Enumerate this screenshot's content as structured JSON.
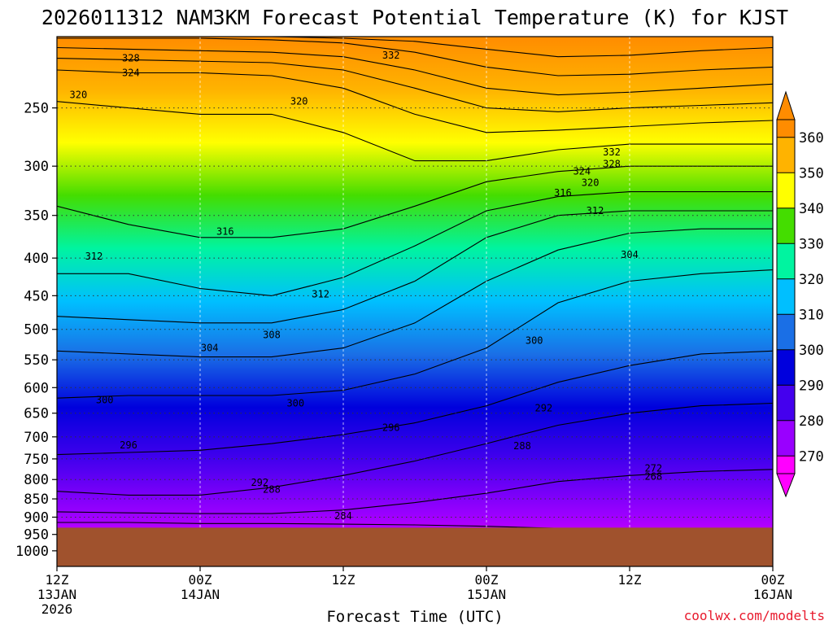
{
  "chart_data": {
    "type": "heatmap",
    "title": "2026011312 NAM3KM Forecast Potential Temperature (K) for KJST",
    "xlabel": "Forecast Time (UTC)",
    "ylabel": "",
    "x_ticks": [
      {
        "hours": 0,
        "line1": "12Z",
        "line2": "13JAN",
        "line3": "2026"
      },
      {
        "hours": 12,
        "line1": "00Z",
        "line2": "14JAN",
        "line3": ""
      },
      {
        "hours": 24,
        "line1": "12Z",
        "line2": "",
        "line3": ""
      },
      {
        "hours": 36,
        "line1": "00Z",
        "line2": "15JAN",
        "line3": ""
      },
      {
        "hours": 48,
        "line1": "12Z",
        "line2": "",
        "line3": ""
      },
      {
        "hours": 60,
        "line1": "00Z",
        "line2": "16JAN",
        "line3": ""
      }
    ],
    "xlim": [
      0,
      60
    ],
    "y_ticks": [
      250,
      300,
      350,
      400,
      450,
      500,
      550,
      600,
      650,
      700,
      750,
      800,
      850,
      900,
      950,
      1000
    ],
    "ylim_hpa": [
      200,
      1050
    ],
    "surface_pressure_hpa": 930,
    "colorbar": {
      "ticks": [
        270,
        280,
        290,
        300,
        310,
        320,
        330,
        340,
        350,
        360
      ],
      "range": [
        265,
        365
      ],
      "band_colors": [
        "#ff00ff",
        "#9900ff",
        "#4400ee",
        "#0000dd",
        "#1a6fe6",
        "#00bfff",
        "#00f4a0",
        "#44dd00",
        "#ffff00",
        "#ffb300",
        "#ff8c00"
      ]
    },
    "surface_color": "#a0522d",
    "isentropes": [
      {
        "theta": 284,
        "pressures": [
          915,
          915,
          918,
          918,
          920,
          922,
          926,
          932,
          935,
          935,
          935
        ]
      },
      {
        "theta": 288,
        "pressures": [
          885,
          888,
          890,
          890,
          880,
          860,
          835,
          805,
          790,
          780,
          775
        ]
      },
      {
        "theta": 292,
        "pressures": [
          830,
          840,
          840,
          820,
          790,
          755,
          715,
          675,
          650,
          635,
          630
        ]
      },
      {
        "theta": 296,
        "pressures": [
          740,
          735,
          730,
          715,
          695,
          670,
          635,
          590,
          560,
          540,
          535
        ]
      },
      {
        "theta": 300,
        "pressures": [
          620,
          615,
          615,
          615,
          605,
          575,
          530,
          460,
          430,
          420,
          415
        ]
      },
      {
        "theta": 304,
        "pressures": [
          535,
          540,
          545,
          545,
          530,
          490,
          430,
          390,
          370,
          365,
          365
        ]
      },
      {
        "theta": 308,
        "pressures": [
          480,
          485,
          490,
          490,
          470,
          430,
          375,
          350,
          345,
          345,
          345
        ]
      },
      {
        "theta": 312,
        "pressures": [
          420,
          420,
          440,
          450,
          425,
          385,
          345,
          330,
          325,
          325,
          325
        ]
      },
      {
        "theta": 316,
        "pressures": [
          340,
          360,
          375,
          375,
          365,
          340,
          315,
          305,
          300,
          300,
          300
        ]
      },
      {
        "theta": 320,
        "pressures": [
          245,
          250,
          255,
          255,
          270,
          295,
          295,
          285,
          280,
          280,
          280
        ]
      },
      {
        "theta": 324,
        "pressures": [
          222,
          224,
          224,
          226,
          235,
          255,
          270,
          268,
          265,
          262,
          260
        ]
      },
      {
        "theta": 328,
        "pressures": [
          214,
          215,
          216,
          217,
          222,
          235,
          250,
          253,
          250,
          248,
          246
        ]
      },
      {
        "theta": 332,
        "pressures": [
          207,
          208,
          209,
          210,
          213,
          222,
          235,
          240,
          238,
          235,
          232
        ]
      },
      {
        "theta": 340,
        "pressures": [
          201,
          201,
          201,
          202,
          204,
          210,
          220,
          226,
          225,
          222,
          220
        ]
      },
      {
        "theta": 350,
        "pressures": [
          200,
          200,
          200,
          200,
          201,
          203,
          208,
          213,
          212,
          209,
          207
        ]
      }
    ],
    "contour_labels": [
      {
        "text": "328",
        "hours": 6.2,
        "p": 214
      },
      {
        "text": "324",
        "hours": 6.2,
        "p": 224
      },
      {
        "text": "332",
        "hours": 28.0,
        "p": 212
      },
      {
        "text": "320",
        "hours": 1.8,
        "p": 240
      },
      {
        "text": "320",
        "hours": 20.3,
        "p": 245
      },
      {
        "text": "332",
        "hours": 46.5,
        "p": 287
      },
      {
        "text": "328",
        "hours": 46.5,
        "p": 298
      },
      {
        "text": "324",
        "hours": 44.0,
        "p": 305
      },
      {
        "text": "320",
        "hours": 44.7,
        "p": 316
      },
      {
        "text": "316",
        "hours": 42.4,
        "p": 326
      },
      {
        "text": "312",
        "hours": 45.1,
        "p": 345
      },
      {
        "text": "316",
        "hours": 14.1,
        "p": 368
      },
      {
        "text": "312",
        "hours": 3.1,
        "p": 398
      },
      {
        "text": "304",
        "hours": 48.0,
        "p": 396
      },
      {
        "text": "312",
        "hours": 22.1,
        "p": 448
      },
      {
        "text": "308",
        "hours": 18.0,
        "p": 509
      },
      {
        "text": "300",
        "hours": 40.0,
        "p": 518
      },
      {
        "text": "304",
        "hours": 12.8,
        "p": 530
      },
      {
        "text": "300",
        "hours": 4.0,
        "p": 624
      },
      {
        "text": "300",
        "hours": 20.0,
        "p": 630
      },
      {
        "text": "292",
        "hours": 40.8,
        "p": 640
      },
      {
        "text": "296",
        "hours": 28.0,
        "p": 680
      },
      {
        "text": "288",
        "hours": 39.0,
        "p": 720
      },
      {
        "text": "296",
        "hours": 6.0,
        "p": 718
      },
      {
        "text": "272",
        "hours": 50.0,
        "p": 772
      },
      {
        "text": "268",
        "hours": 50.0,
        "p": 792
      },
      {
        "text": "292",
        "hours": 17.0,
        "p": 808
      },
      {
        "text": "288",
        "hours": 18.0,
        "p": 825
      },
      {
        "text": "284",
        "hours": 24.0,
        "p": 897
      }
    ],
    "credit": "coolwx.com/modelts"
  }
}
